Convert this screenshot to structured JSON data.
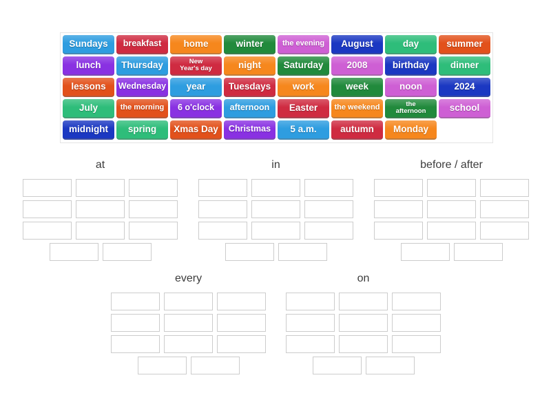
{
  "page": {
    "background": "#ffffff"
  },
  "board": {
    "border_color": "#e4e4e4",
    "palette": {
      "blue": "#2E9DE0",
      "crimson": "#CF2B41",
      "orange": "#F6871D",
      "darkgreen": "#218A3C",
      "orchid": "#CE5FD4",
      "darkblue": "#1B38C2",
      "seagreen": "#2EBD7A",
      "vermilion": "#E2511B",
      "purple": "#8931E2"
    },
    "tiles": [
      {
        "label": "Sundays",
        "color": "blue"
      },
      {
        "label": "breakfast",
        "color": "crimson"
      },
      {
        "label": "home",
        "color": "orange"
      },
      {
        "label": "winter",
        "color": "darkgreen"
      },
      {
        "label": "the evening",
        "color": "orchid"
      },
      {
        "label": "August",
        "color": "darkblue"
      },
      {
        "label": "day",
        "color": "seagreen"
      },
      {
        "label": "summer",
        "color": "vermilion"
      },
      {
        "label": "lunch",
        "color": "purple"
      },
      {
        "label": "Thursday",
        "color": "blue"
      },
      {
        "label": "New\nYear's day",
        "color": "crimson"
      },
      {
        "label": "night",
        "color": "orange"
      },
      {
        "label": "Saturday",
        "color": "darkgreen"
      },
      {
        "label": "2008",
        "color": "orchid"
      },
      {
        "label": "birthday",
        "color": "darkblue"
      },
      {
        "label": "dinner",
        "color": "seagreen"
      },
      {
        "label": "lessons",
        "color": "vermilion"
      },
      {
        "label": "Wednesday",
        "color": "purple"
      },
      {
        "label": "year",
        "color": "blue"
      },
      {
        "label": "Tuesdays",
        "color": "crimson"
      },
      {
        "label": "work",
        "color": "orange"
      },
      {
        "label": "week",
        "color": "darkgreen"
      },
      {
        "label": "noon",
        "color": "orchid"
      },
      {
        "label": "2024",
        "color": "darkblue"
      },
      {
        "label": "July",
        "color": "seagreen"
      },
      {
        "label": "the morning",
        "color": "vermilion"
      },
      {
        "label": "6 o'clock",
        "color": "purple"
      },
      {
        "label": "afternoon",
        "color": "blue"
      },
      {
        "label": "Easter",
        "color": "crimson"
      },
      {
        "label": "the weekend",
        "color": "orange"
      },
      {
        "label": "the\nafternoon",
        "color": "darkgreen"
      },
      {
        "label": "school",
        "color": "orchid"
      },
      {
        "label": "midnight",
        "color": "darkblue"
      },
      {
        "label": "spring",
        "color": "seagreen"
      },
      {
        "label": "Xmas Day",
        "color": "vermilion"
      },
      {
        "label": "Christmas",
        "color": "purple"
      },
      {
        "label": "5 a.m.",
        "color": "blue"
      },
      {
        "label": "autumn",
        "color": "crimson"
      },
      {
        "label": "Monday",
        "color": "orange"
      }
    ]
  },
  "groups": [
    {
      "label": "at",
      "grid_slots": 9,
      "extra_slots": 2
    },
    {
      "label": "in",
      "grid_slots": 9,
      "extra_slots": 2
    },
    {
      "label": "before / after",
      "grid_slots": 9,
      "extra_slots": 2
    },
    {
      "label": "every",
      "grid_slots": 9,
      "extra_slots": 2
    },
    {
      "label": "on",
      "grid_slots": 9,
      "extra_slots": 2
    }
  ]
}
